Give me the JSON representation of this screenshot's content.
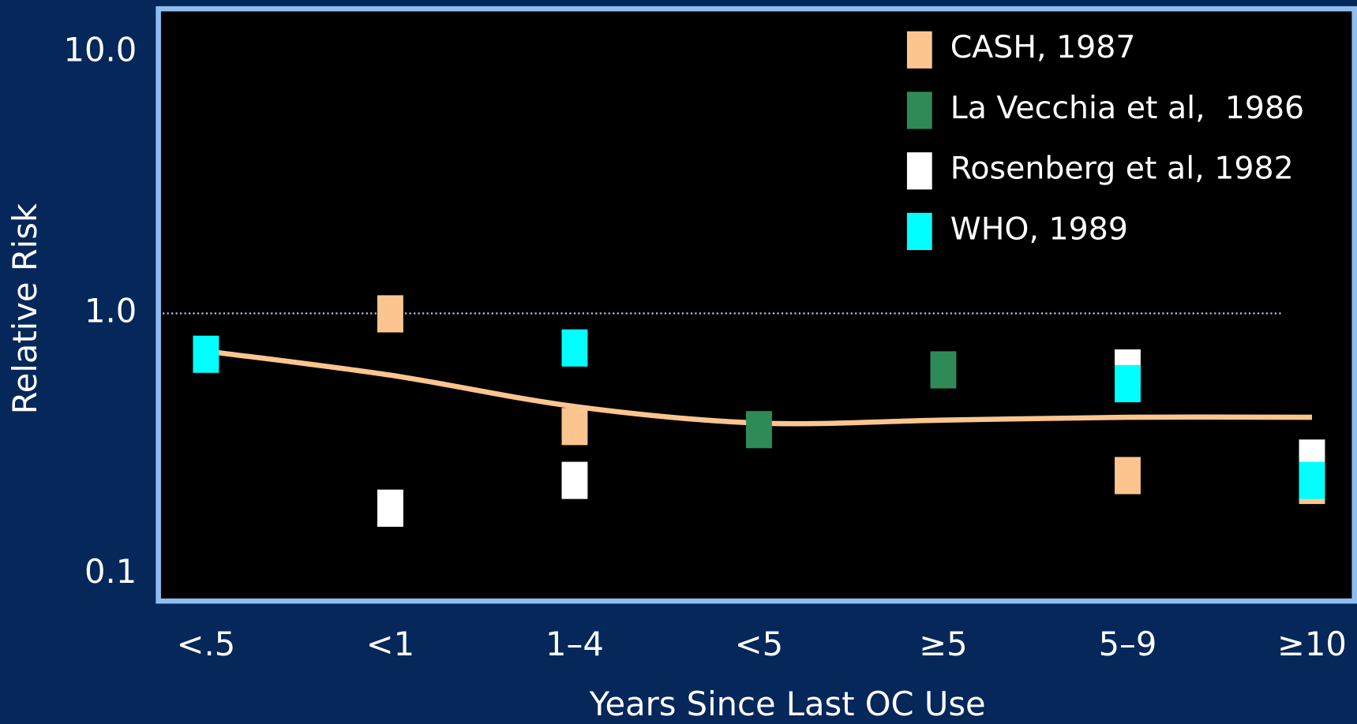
{
  "chart_data": {
    "type": "scatter",
    "x_label": "Years Since Last OC Use",
    "y_label": "Relative Risk",
    "categories": [
      "<.5",
      "<1",
      "1–4",
      "<5",
      "≥5",
      "5–9",
      "≥10"
    ],
    "series": [
      {
        "name": "CASH, 1987",
        "color": "#fcc58f",
        "values": [
          null,
          1.0,
          0.37,
          null,
          null,
          0.24,
          0.22
        ]
      },
      {
        "name": "La Vecchia et al,  1986",
        "color": "#2e8b57",
        "values": [
          null,
          null,
          null,
          0.36,
          0.61,
          null,
          null
        ]
      },
      {
        "name": "Rosenberg et al, 1982",
        "color": "#ffffff",
        "values": [
          null,
          0.18,
          0.23,
          null,
          null,
          0.62,
          0.28
        ]
      },
      {
        "name": "WHO, 1989",
        "color": "#00ffff",
        "values": [
          0.7,
          null,
          0.74,
          null,
          null,
          0.54,
          0.23
        ]
      }
    ],
    "trend": {
      "color": "#fcc58f",
      "values": [
        0.71,
        0.58,
        0.44,
        0.38,
        0.39,
        0.4,
        0.4
      ]
    },
    "log_y": true,
    "ylim": [
      0.079,
      14.7
    ],
    "yticks": [
      {
        "value": 10,
        "label": "10.0"
      },
      {
        "value": 1,
        "label": "1.0"
      },
      {
        "value": 0.1,
        "label": "0.1"
      }
    ],
    "reference_line": 1,
    "legend": "upper right"
  }
}
